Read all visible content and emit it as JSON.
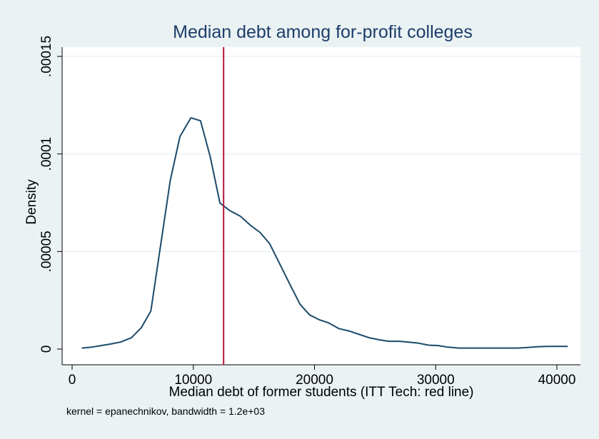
{
  "chart_data": {
    "type": "line",
    "title": "Median debt among for-profit colleges",
    "xlabel": "Median debt of former students (ITT Tech: red line)",
    "ylabel": "Density",
    "note": "kernel = epanechnikov, bandwidth =  1.2e+03",
    "xlim": [
      0,
      43000
    ],
    "ylim": [
      0,
      0.00015
    ],
    "x_ticks": [
      0,
      10000,
      20000,
      30000,
      40000
    ],
    "x_tick_labels": [
      "0",
      "10000",
      "20000",
      "30000",
      "40000"
    ],
    "y_ticks": [
      0,
      5e-05,
      0.0001,
      0.00015
    ],
    "y_tick_labels": [
      "0",
      ".00005",
      ".0001",
      ".00015"
    ],
    "grid": true,
    "reference_line": {
      "x": 12500,
      "color": "#b5163a"
    },
    "series": [
      {
        "color": "#1b4a6b",
        "x": [
          800,
          1600,
          2400,
          3200,
          4000,
          4900,
          5700,
          6500,
          7300,
          8100,
          8900,
          9800,
          10600,
          11400,
          12200,
          13000,
          13900,
          14700,
          15500,
          16300,
          17100,
          17900,
          18800,
          19600,
          20400,
          21200,
          22000,
          22900,
          23700,
          24500,
          25300,
          26100,
          27000,
          27800,
          28600,
          29400,
          30200,
          31000,
          31900,
          32700,
          33500,
          34300,
          35100,
          36000,
          36800,
          37600,
          38400,
          39200,
          40100,
          40900
        ],
        "y": [
          5e-07,
          1e-06,
          1.8e-06,
          2.6e-06,
          3.6e-06,
          5.8e-06,
          1.09e-05,
          1.95e-05,
          5.3e-05,
          8.65e-05,
          0.000109,
          0.0001185,
          0.000117,
          9.85e-05,
          7.48e-05,
          7.1e-05,
          6.8e-05,
          6.35e-05,
          5.98e-05,
          5.4e-05,
          4.4e-05,
          3.4e-05,
          2.3e-05,
          1.75e-05,
          1.5e-05,
          1.33e-05,
          1.05e-05,
          9.2e-06,
          7.5e-06,
          5.8e-06,
          4.8e-06,
          4e-06,
          4e-06,
          3.5e-06,
          3e-06,
          2e-06,
          1.8e-06,
          1e-06,
          5e-07,
          5e-07,
          5e-07,
          5e-07,
          5e-07,
          5e-07,
          5e-07,
          8e-07,
          1.2e-06,
          1.4e-06,
          1.4e-06,
          1.4e-06
        ]
      }
    ]
  }
}
